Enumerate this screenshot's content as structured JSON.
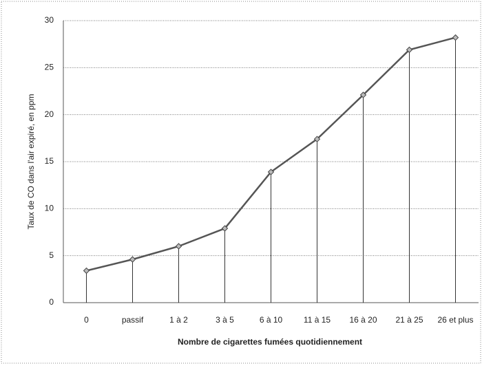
{
  "chart_data": {
    "type": "line",
    "xlabel": "Nombre de cigarettes fumées quotidiennement",
    "ylabel": "Taux de CO dans l'air expiré, en ppm",
    "categories": [
      "0",
      "passif",
      "1 à 2",
      "3 à 5",
      "6 à 10",
      "11 à 15",
      "16 à 20",
      "21 à 25",
      "26 et plus"
    ],
    "values": [
      3.4,
      4.6,
      6.0,
      7.9,
      13.9,
      17.4,
      22.1,
      26.9,
      28.2
    ],
    "color": "#555555",
    "ylim": [
      0,
      30
    ],
    "yticks": [
      0,
      5,
      10,
      15,
      20,
      25,
      30
    ],
    "grid": true,
    "drop_lines": true
  }
}
